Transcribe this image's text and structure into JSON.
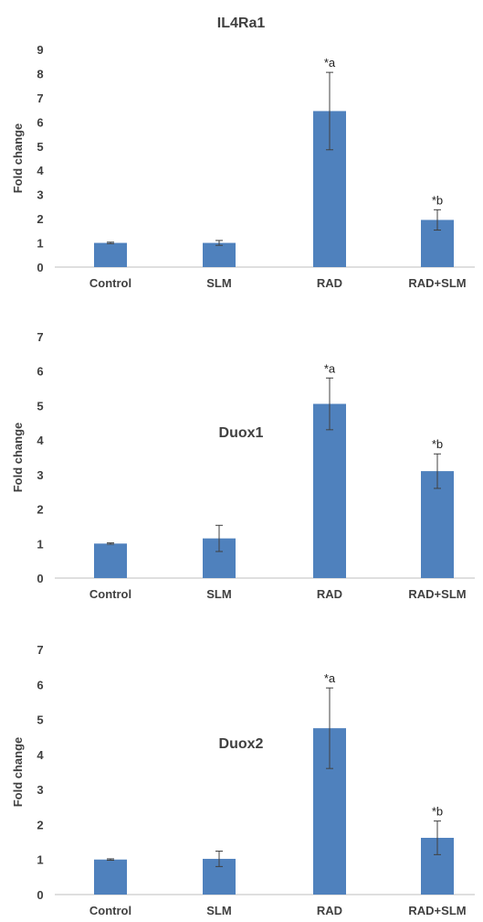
{
  "colors": {
    "bar": "#4f81bd",
    "axis": "#bfbfbf",
    "text": "#404040",
    "error": "#404040"
  },
  "chart_data": [
    {
      "type": "bar",
      "title": "IL4Ra1",
      "ylabel": "Fold change",
      "xlabel": "",
      "ylim": [
        0,
        9
      ],
      "yticks": [
        "0",
        "1",
        "2",
        "3",
        "4",
        "5",
        "6",
        "7",
        "8",
        "9"
      ],
      "grid": false,
      "categories": [
        "Control",
        "SLM",
        "RAD",
        "RAD+SLM"
      ],
      "values": [
        1.0,
        1.0,
        6.45,
        1.95
      ],
      "errors": [
        0.03,
        0.1,
        1.6,
        0.42
      ],
      "annotations": [
        "",
        "",
        "*a",
        "*b"
      ]
    },
    {
      "type": "bar",
      "title": "Duox1",
      "ylabel": "Fold change",
      "xlabel": "",
      "ylim": [
        0,
        7
      ],
      "yticks": [
        "0",
        "1",
        "2",
        "3",
        "4",
        "5",
        "6",
        "7"
      ],
      "grid": false,
      "categories": [
        "Control",
        "SLM",
        "RAD",
        "RAD+SLM"
      ],
      "values": [
        1.0,
        1.15,
        5.05,
        3.1
      ],
      "errors": [
        0.02,
        0.38,
        0.75,
        0.5
      ],
      "annotations": [
        "",
        "",
        "*a",
        "*b"
      ]
    },
    {
      "type": "bar",
      "title": "Duox2",
      "ylabel": "Fold change",
      "xlabel": "",
      "ylim": [
        0,
        7
      ],
      "yticks": [
        "0",
        "1",
        "2",
        "3",
        "4",
        "5",
        "6",
        "7"
      ],
      "grid": false,
      "categories": [
        "Control",
        "SLM",
        "RAD",
        "RAD+SLM"
      ],
      "values": [
        1.0,
        1.02,
        4.75,
        1.62
      ],
      "errors": [
        0.02,
        0.22,
        1.15,
        0.48
      ],
      "annotations": [
        "",
        "",
        "*a",
        "*b"
      ]
    }
  ]
}
